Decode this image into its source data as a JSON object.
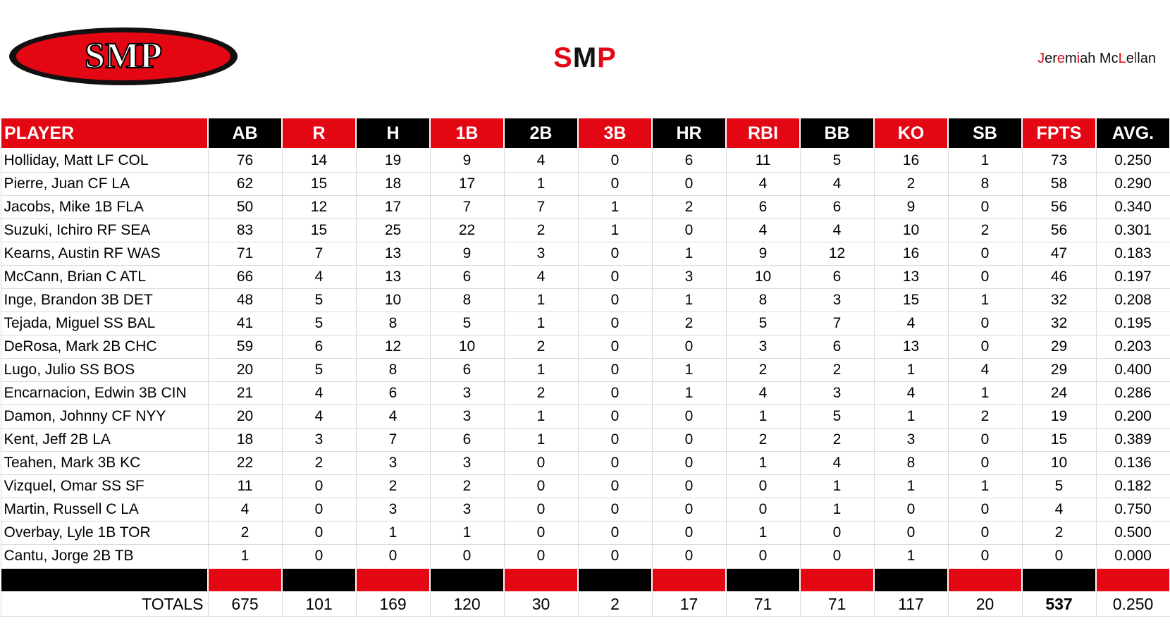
{
  "header": {
    "logo_text": "SMP",
    "title": "SMP",
    "author": "Jeremiah McLellan"
  },
  "table": {
    "columns": [
      "PLAYER",
      "AB",
      "R",
      "H",
      "1B",
      "2B",
      "3B",
      "HR",
      "RBI",
      "BB",
      "KO",
      "SB",
      "FPTS",
      "AVG."
    ],
    "rows": [
      [
        "Holliday, Matt LF COL",
        76,
        14,
        19,
        9,
        4,
        0,
        6,
        11,
        5,
        16,
        1,
        73,
        "0.250"
      ],
      [
        "Pierre, Juan CF LA",
        62,
        15,
        18,
        17,
        1,
        0,
        0,
        4,
        4,
        2,
        8,
        58,
        "0.290"
      ],
      [
        "Jacobs, Mike 1B FLA",
        50,
        12,
        17,
        7,
        7,
        1,
        2,
        6,
        6,
        9,
        0,
        56,
        "0.340"
      ],
      [
        "Suzuki, Ichiro RF SEA",
        83,
        15,
        25,
        22,
        2,
        1,
        0,
        4,
        4,
        10,
        2,
        56,
        "0.301"
      ],
      [
        "Kearns, Austin RF WAS",
        71,
        7,
        13,
        9,
        3,
        0,
        1,
        9,
        12,
        16,
        0,
        47,
        "0.183"
      ],
      [
        "McCann, Brian C ATL",
        66,
        4,
        13,
        6,
        4,
        0,
        3,
        10,
        6,
        13,
        0,
        46,
        "0.197"
      ],
      [
        "Inge, Brandon 3B DET",
        48,
        5,
        10,
        8,
        1,
        0,
        1,
        8,
        3,
        15,
        1,
        32,
        "0.208"
      ],
      [
        "Tejada, Miguel SS BAL",
        41,
        5,
        8,
        5,
        1,
        0,
        2,
        5,
        7,
        4,
        0,
        32,
        "0.195"
      ],
      [
        "DeRosa, Mark 2B CHC",
        59,
        6,
        12,
        10,
        2,
        0,
        0,
        3,
        6,
        13,
        0,
        29,
        "0.203"
      ],
      [
        "Lugo, Julio SS BOS",
        20,
        5,
        8,
        6,
        1,
        0,
        1,
        2,
        2,
        1,
        4,
        29,
        "0.400"
      ],
      [
        "Encarnacion, Edwin 3B CIN",
        21,
        4,
        6,
        3,
        2,
        0,
        1,
        4,
        3,
        4,
        1,
        24,
        "0.286"
      ],
      [
        "Damon, Johnny CF NYY",
        20,
        4,
        4,
        3,
        1,
        0,
        0,
        1,
        5,
        1,
        2,
        19,
        "0.200"
      ],
      [
        "Kent, Jeff 2B LA",
        18,
        3,
        7,
        6,
        1,
        0,
        0,
        2,
        2,
        3,
        0,
        15,
        "0.389"
      ],
      [
        "Teahen, Mark 3B KC",
        22,
        2,
        3,
        3,
        0,
        0,
        0,
        1,
        4,
        8,
        0,
        10,
        "0.136"
      ],
      [
        "Vizquel, Omar SS SF",
        11,
        0,
        2,
        2,
        0,
        0,
        0,
        0,
        1,
        1,
        1,
        5,
        "0.182"
      ],
      [
        "Martin, Russell C LA",
        4,
        0,
        3,
        3,
        0,
        0,
        0,
        0,
        1,
        0,
        0,
        4,
        "0.750"
      ],
      [
        "Overbay, Lyle 1B TOR",
        2,
        0,
        1,
        1,
        0,
        0,
        0,
        1,
        0,
        0,
        0,
        2,
        "0.500"
      ],
      [
        "Cantu, Jorge 2B TB",
        1,
        0,
        0,
        0,
        0,
        0,
        0,
        0,
        0,
        1,
        0,
        0,
        "0.000"
      ]
    ],
    "totals": [
      "TOTALS",
      675,
      101,
      169,
      120,
      30,
      2,
      17,
      71,
      71,
      117,
      20,
      537,
      "0.250"
    ]
  }
}
